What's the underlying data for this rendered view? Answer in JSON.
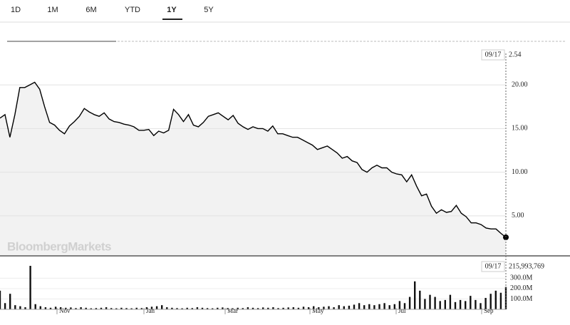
{
  "tabs": [
    "1D",
    "1M",
    "6M",
    "YTD",
    "1Y",
    "5Y"
  ],
  "active_tab": 4,
  "chart_data": [
    {
      "type": "line",
      "color": "#000000",
      "fill": "#f2f2f2",
      "grid": true,
      "watermark": "BloombergMarkets",
      "last_date": "09/17",
      "x_labels": [
        "Nov",
        "Jan",
        "Mar",
        "May",
        "Jul",
        "Sep"
      ],
      "ylim": [
        0.5,
        23.6
      ],
      "yticks": [
        {
          "value": 5,
          "label": "5.00"
        },
        {
          "value": 10,
          "label": "10.00"
        },
        {
          "value": 15,
          "label": "15.00"
        },
        {
          "value": 20,
          "label": "20.00"
        }
      ],
      "values": [
        16.2,
        16.6,
        14.0,
        16.6,
        19.7,
        19.7,
        20.0,
        20.3,
        19.5,
        17.5,
        15.7,
        15.4,
        14.8,
        14.4,
        15.3,
        15.8,
        16.4,
        17.3,
        16.9,
        16.6,
        16.4,
        16.8,
        16.1,
        15.8,
        15.7,
        15.5,
        15.4,
        15.2,
        14.8,
        14.8,
        14.9,
        14.2,
        14.7,
        14.5,
        14.8,
        17.2,
        16.6,
        15.8,
        16.6,
        15.4,
        15.2,
        15.7,
        16.4,
        16.6,
        16.8,
        16.4,
        16.0,
        16.5,
        15.6,
        15.2,
        14.9,
        15.2,
        15.0,
        15.0,
        14.7,
        15.3,
        14.4,
        14.4,
        14.2,
        14.0,
        14.0,
        13.7,
        13.4,
        13.1,
        12.6,
        12.8,
        13.0,
        12.6,
        12.2,
        11.6,
        11.8,
        11.3,
        11.1,
        10.3,
        10.0,
        10.5,
        10.8,
        10.5,
        10.5,
        10.0,
        9.8,
        9.7,
        8.9,
        9.7,
        8.4,
        7.3,
        7.5,
        6.1,
        5.3,
        5.7,
        5.4,
        5.5,
        6.2,
        5.3,
        4.9,
        4.2,
        4.2,
        4.0,
        3.6,
        3.5,
        3.5,
        3.0,
        2.54
      ]
    },
    {
      "type": "bar",
      "color": "#111111",
      "last_date": "09/17",
      "last_label": "215,993,769",
      "ylim": [
        0,
        475000000
      ],
      "yticks": [
        {
          "value": 100000000,
          "label": "100.0M"
        },
        {
          "value": 200000000,
          "label": "200.0M"
        },
        {
          "value": 300000000,
          "label": "300.0M"
        }
      ],
      "values": [
        180000000,
        60000000,
        150000000,
        40000000,
        30000000,
        20000000,
        420000000,
        50000000,
        30000000,
        20000000,
        15000000,
        25000000,
        20000000,
        15000000,
        18000000,
        12000000,
        20000000,
        15000000,
        10000000,
        12000000,
        15000000,
        20000000,
        12000000,
        10000000,
        15000000,
        12000000,
        10000000,
        15000000,
        12000000,
        20000000,
        25000000,
        30000000,
        40000000,
        20000000,
        15000000,
        12000000,
        10000000,
        15000000,
        12000000,
        20000000,
        15000000,
        12000000,
        10000000,
        15000000,
        18000000,
        12000000,
        10000000,
        15000000,
        12000000,
        20000000,
        15000000,
        12000000,
        18000000,
        15000000,
        20000000,
        12000000,
        15000000,
        18000000,
        20000000,
        15000000,
        25000000,
        20000000,
        30000000,
        20000000,
        25000000,
        30000000,
        20000000,
        40000000,
        30000000,
        35000000,
        45000000,
        60000000,
        40000000,
        50000000,
        40000000,
        50000000,
        60000000,
        40000000,
        50000000,
        80000000,
        60000000,
        120000000,
        270000000,
        180000000,
        100000000,
        140000000,
        120000000,
        80000000,
        90000000,
        140000000,
        70000000,
        90000000,
        80000000,
        130000000,
        90000000,
        60000000,
        110000000,
        150000000,
        180000000,
        160000000,
        215993769
      ]
    }
  ]
}
